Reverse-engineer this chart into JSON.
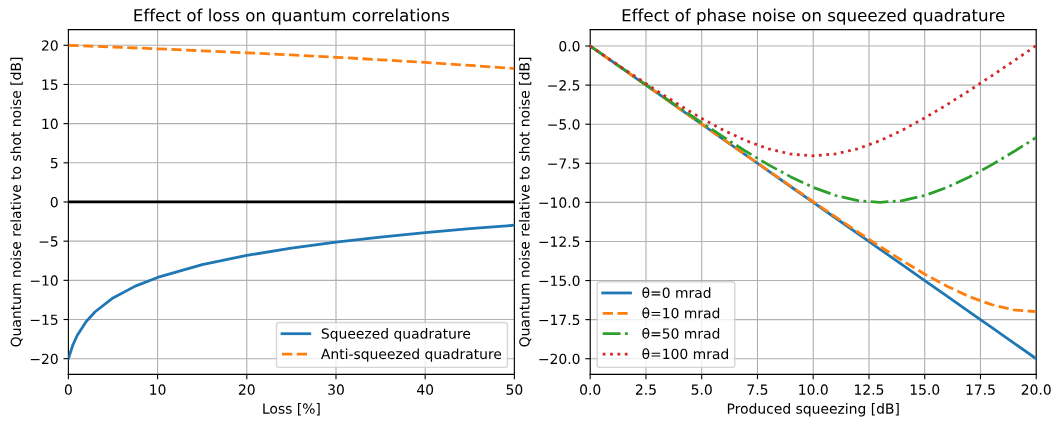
{
  "chart_data": [
    {
      "type": "line",
      "title": "Effect of loss on quantum correlations",
      "xlabel": "Loss [%]",
      "ylabel": "Quantum noise relative to shot noise [dB]",
      "xlim": [
        0,
        50
      ],
      "xticks": [
        0,
        10,
        20,
        30,
        40,
        50
      ],
      "ylim": [
        -22,
        22
      ],
      "yticks": [
        {
          "value": -20,
          "label": "−20"
        },
        {
          "value": -15,
          "label": "−15"
        },
        {
          "value": -10,
          "label": "−10"
        },
        {
          "value": -5,
          "label": "−5"
        },
        0,
        5,
        10,
        15,
        20
      ],
      "grid": true,
      "legend": "bottom right",
      "ref_lines": [
        {
          "axis": "y",
          "value": 0,
          "color": "#000000"
        }
      ],
      "series": [
        {
          "name": "Squeezed quadrature",
          "color": "#1f77b4",
          "line_style": "solid",
          "x": [
            0,
            0.5,
            1,
            2,
            3,
            5,
            7.5,
            10,
            15,
            20,
            25,
            30,
            35,
            40,
            45,
            50
          ],
          "values": [
            -20,
            -18.25,
            -17.01,
            -15.26,
            -14.01,
            -12.25,
            -10.74,
            -9.63,
            -8.0,
            -6.82,
            -5.89,
            -5.13,
            -4.48,
            -3.91,
            -3.41,
            -2.97
          ]
        },
        {
          "name": "Anti-squeezed quadrature",
          "color": "#ff7f0e",
          "line_style": "dashed",
          "x": [
            0,
            5,
            10,
            15,
            20,
            25,
            30,
            35,
            40,
            45,
            50
          ],
          "values": [
            20,
            19.78,
            19.55,
            19.3,
            19.04,
            18.77,
            18.47,
            18.15,
            17.81,
            17.44,
            17.03
          ]
        }
      ]
    },
    {
      "type": "line",
      "title": "Effect of phase noise on squeezed quadrature",
      "xlabel": "Produced squeezing [dB]",
      "ylabel": "Quantum noise relative to shot noise [dB]",
      "xlim": [
        0,
        20
      ],
      "xticks": [
        {
          "value": 0,
          "label": "0.0"
        },
        {
          "value": 2.5,
          "label": "2.5"
        },
        {
          "value": 5,
          "label": "5.0"
        },
        {
          "value": 7.5,
          "label": "7.5"
        },
        {
          "value": 10,
          "label": "10.0"
        },
        {
          "value": 12.5,
          "label": "12.5"
        },
        {
          "value": 15,
          "label": "15.0"
        },
        {
          "value": 17.5,
          "label": "17.5"
        },
        {
          "value": 20,
          "label": "20.0"
        }
      ],
      "ylim": [
        -21,
        1.05
      ],
      "yticks": [
        {
          "value": -20,
          "label": "−20.0"
        },
        {
          "value": -17.5,
          "label": "−17.5"
        },
        {
          "value": -15,
          "label": "−15.0"
        },
        {
          "value": -12.5,
          "label": "−12.5"
        },
        {
          "value": -10,
          "label": "−10.0"
        },
        {
          "value": -7.5,
          "label": "−7.5"
        },
        {
          "value": -5,
          "label": "−5.0"
        },
        {
          "value": -2.5,
          "label": "−2.5"
        },
        {
          "value": 0,
          "label": "0.0"
        }
      ],
      "grid": true,
      "legend": "bottom left",
      "x": [
        0,
        1,
        2,
        3,
        4,
        5,
        6,
        7,
        8,
        9,
        10,
        11,
        12,
        13,
        14,
        15,
        16,
        17,
        18,
        19,
        20
      ],
      "series": [
        {
          "name": "θ=0 mrad",
          "color": "#1f77b4",
          "line_style": "solid",
          "values": [
            0,
            -1,
            -2,
            -3,
            -4,
            -5,
            -6,
            -7,
            -8,
            -9,
            -10,
            -11,
            -12,
            -13,
            -14,
            -15,
            -16,
            -17,
            -18,
            -19,
            -20
          ]
        },
        {
          "name": "θ=10 mrad",
          "color": "#ff7f0e",
          "line_style": "dashed",
          "values": [
            0,
            -1,
            -2,
            -3,
            -4,
            -5,
            -5.99,
            -6.99,
            -7.98,
            -8.97,
            -9.96,
            -10.93,
            -11.89,
            -12.83,
            -13.73,
            -14.59,
            -15.36,
            -16.03,
            -16.54,
            -16.88,
            -16.99
          ]
        },
        {
          "name": "θ=50 mrad",
          "color": "#2ca02c",
          "line_style": "dashdot",
          "values": [
            0,
            -0.99,
            -1.98,
            -2.97,
            -3.94,
            -4.9,
            -5.84,
            -6.75,
            -7.6,
            -8.37,
            -9.04,
            -9.56,
            -9.89,
            -10.0,
            -9.89,
            -9.56,
            -9.04,
            -8.38,
            -7.6,
            -6.75,
            -5.85
          ]
        },
        {
          "name": "θ=100 mrad",
          "color": "#d62728",
          "line_style": "dotted",
          "values": [
            0,
            -0.98,
            -1.93,
            -2.87,
            -3.78,
            -4.63,
            -5.4,
            -6.06,
            -6.58,
            -6.91,
            -7.02,
            -6.9,
            -6.57,
            -6.05,
            -5.38,
            -4.6,
            -3.75,
            -2.85,
            -1.91,
            -0.95,
            0.03
          ]
        }
      ]
    }
  ]
}
